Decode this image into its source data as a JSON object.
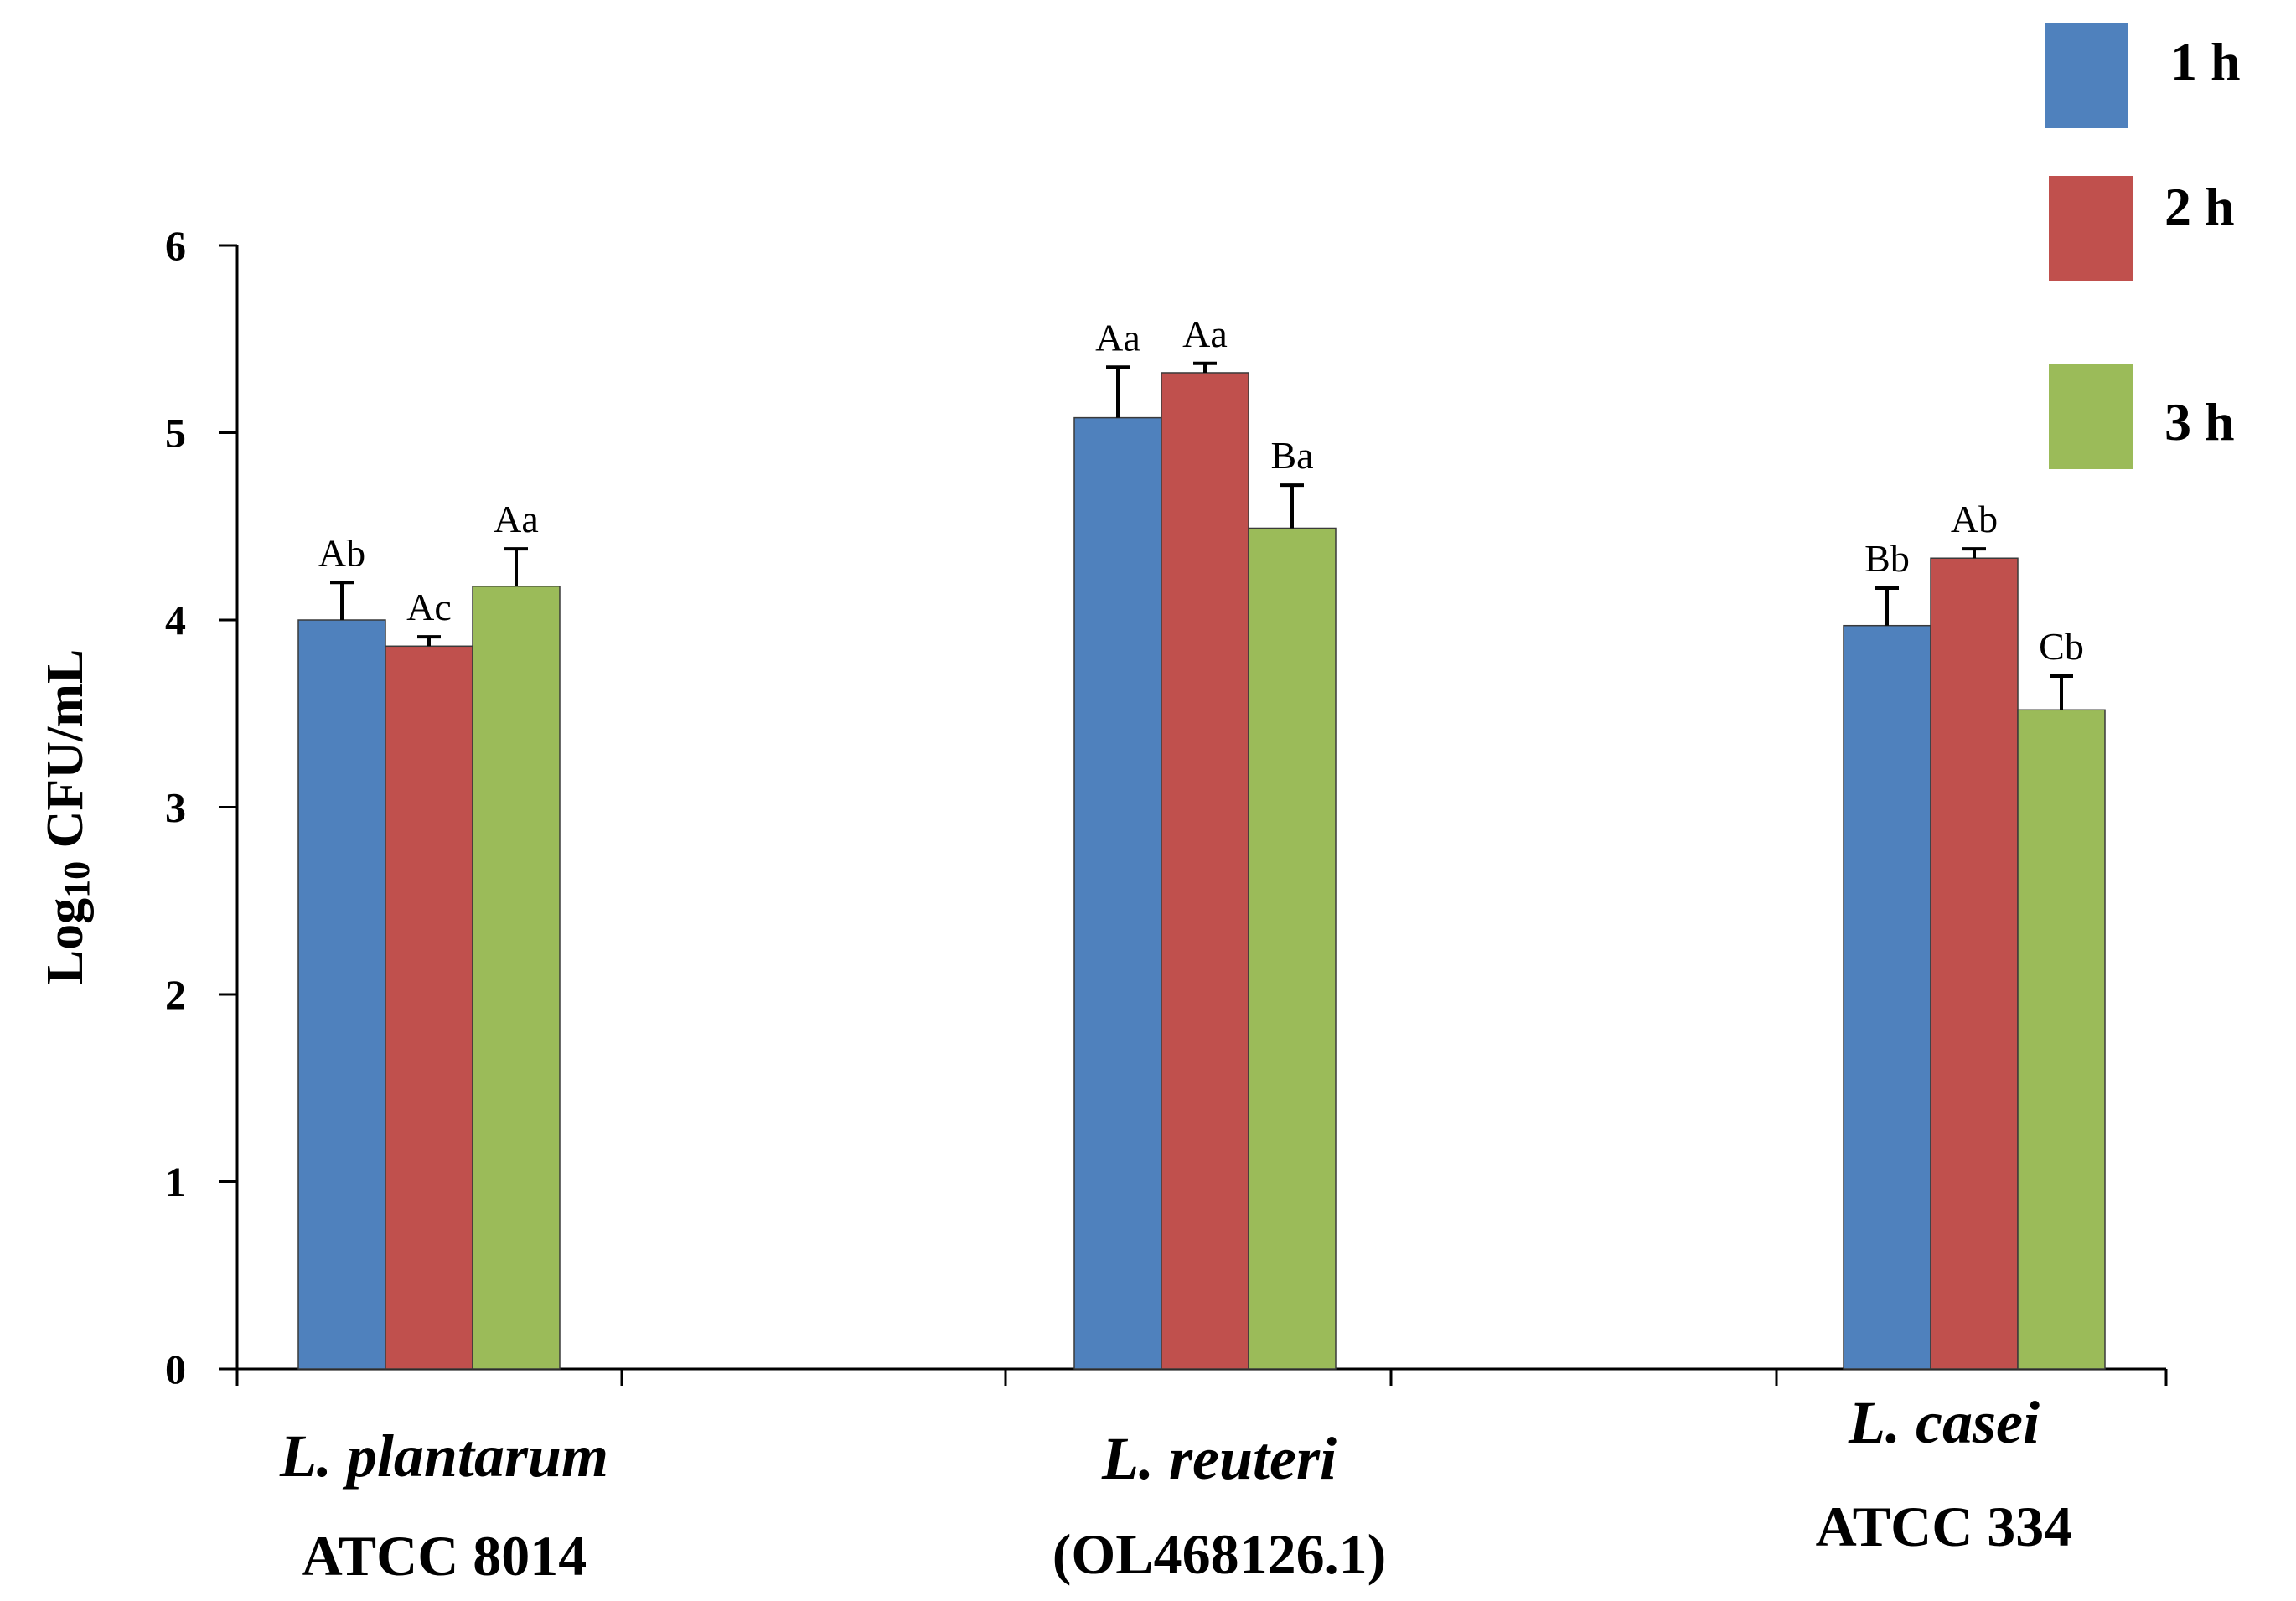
{
  "chart_data": {
    "type": "bar",
    "title": "",
    "xlabel": "",
    "ylabel": "Log10 CFU/mL",
    "ylim": [
      0,
      6
    ],
    "yticks": [
      "0",
      "1",
      "2",
      "3",
      "4",
      "5",
      "6"
    ],
    "grid": false,
    "legend_position": "top-right",
    "categories": [
      {
        "name": "L. plantarum",
        "sub": "ATCC 8014"
      },
      {
        "name": "L. reuteri",
        "sub": "(OL468126.1)"
      },
      {
        "name": "L. casei",
        "sub": "ATCC 334"
      }
    ],
    "series": [
      {
        "name": "1 h",
        "color": "#4f81bd",
        "values": [
          4.0,
          5.08,
          3.97
        ],
        "errors": [
          0.2,
          0.27,
          0.2
        ],
        "labels": [
          "Ab",
          "Aa",
          "Bb"
        ]
      },
      {
        "name": "2 h",
        "color": "#c0504d",
        "values": [
          3.86,
          5.32,
          4.33
        ],
        "errors": [
          0.05,
          0.05,
          0.05
        ],
        "labels": [
          "Ac",
          "Aa",
          "Ab"
        ]
      },
      {
        "name": "3 h",
        "color": "#9bbb59",
        "values": [
          4.18,
          4.49,
          3.52
        ],
        "errors": [
          0.2,
          0.23,
          0.18
        ],
        "labels": [
          "Aa",
          "Ba",
          "Cb"
        ]
      }
    ]
  }
}
